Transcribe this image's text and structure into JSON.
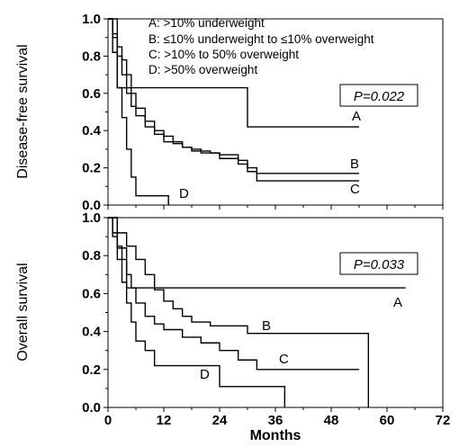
{
  "chart_data": [
    {
      "type": "line",
      "step": true,
      "ylabel": "Disease-free survival",
      "xlabel": "",
      "xlim": [
        0,
        72
      ],
      "ylim": [
        0,
        1.0
      ],
      "xticks": [
        "0",
        "12",
        "24",
        "36",
        "48",
        "60",
        "72"
      ],
      "yticks": [
        "0.0",
        "0.2",
        "0.4",
        "0.6",
        "0.8",
        "1.0"
      ],
      "legend": [
        "A: >10% underweight",
        "B: ≤10% underweight to ≤10% overweight",
        "C: >10% to 50% overweight",
        "D: >50% overweight"
      ],
      "legend_position": "top-right",
      "annotation": "P=0.022",
      "series": [
        {
          "name": "A",
          "x": [
            0,
            2,
            30,
            54
          ],
          "y": [
            1.0,
            0.63,
            0.42,
            0.42
          ]
        },
        {
          "name": "B",
          "x": [
            0,
            1,
            2,
            3,
            4,
            5,
            6,
            8,
            10,
            12,
            14,
            16,
            18,
            20,
            22,
            24,
            28,
            30,
            32,
            40,
            48,
            54
          ],
          "y": [
            1.0,
            0.92,
            0.85,
            0.78,
            0.7,
            0.6,
            0.52,
            0.45,
            0.4,
            0.37,
            0.33,
            0.31,
            0.3,
            0.29,
            0.28,
            0.27,
            0.24,
            0.2,
            0.17,
            0.17,
            0.17,
            0.17
          ]
        },
        {
          "name": "C",
          "x": [
            0,
            1,
            2,
            3,
            4,
            5,
            6,
            8,
            10,
            12,
            16,
            18,
            20,
            24,
            28,
            30,
            32,
            54
          ],
          "y": [
            1.0,
            0.9,
            0.8,
            0.7,
            0.6,
            0.53,
            0.48,
            0.42,
            0.38,
            0.34,
            0.31,
            0.29,
            0.28,
            0.25,
            0.22,
            0.18,
            0.13,
            0.13
          ]
        },
        {
          "name": "D",
          "x": [
            0,
            1,
            2,
            3,
            4,
            5,
            6,
            13
          ],
          "y": [
            1.0,
            0.82,
            0.63,
            0.47,
            0.3,
            0.15,
            0.05,
            0.0
          ]
        }
      ]
    },
    {
      "type": "line",
      "step": true,
      "ylabel": "Overall survival",
      "xlabel": "Months",
      "xlim": [
        0,
        72
      ],
      "ylim": [
        0,
        1.0
      ],
      "xticks": [
        "0",
        "12",
        "24",
        "36",
        "48",
        "60",
        "72"
      ],
      "yticks": [
        "0.0",
        "0.2",
        "0.4",
        "0.6",
        "0.8",
        "1.0"
      ],
      "annotation": "P=0.033",
      "series": [
        {
          "name": "A",
          "x": [
            0,
            2,
            4,
            64
          ],
          "y": [
            1.0,
            0.84,
            0.63,
            0.63
          ]
        },
        {
          "name": "B",
          "x": [
            0,
            2,
            4,
            6,
            8,
            10,
            12,
            14,
            16,
            18,
            22,
            30,
            36,
            56
          ],
          "y": [
            1.0,
            0.92,
            0.85,
            0.78,
            0.7,
            0.62,
            0.56,
            0.52,
            0.48,
            0.45,
            0.43,
            0.39,
            0.39,
            0.0
          ]
        },
        {
          "name": "C",
          "x": [
            0,
            1,
            2,
            3,
            4,
            5,
            6,
            8,
            10,
            12,
            16,
            20,
            24,
            28,
            32,
            36,
            40,
            54
          ],
          "y": [
            1.0,
            0.92,
            0.85,
            0.78,
            0.7,
            0.63,
            0.55,
            0.48,
            0.44,
            0.41,
            0.37,
            0.34,
            0.3,
            0.25,
            0.2,
            0.2,
            0.2,
            0.2
          ]
        },
        {
          "name": "D",
          "x": [
            0,
            1,
            2,
            3,
            4,
            5,
            6,
            8,
            10,
            24,
            26,
            38
          ],
          "y": [
            1.0,
            0.9,
            0.78,
            0.66,
            0.55,
            0.45,
            0.35,
            0.3,
            0.22,
            0.11,
            0.11,
            0.0
          ]
        }
      ]
    }
  ]
}
